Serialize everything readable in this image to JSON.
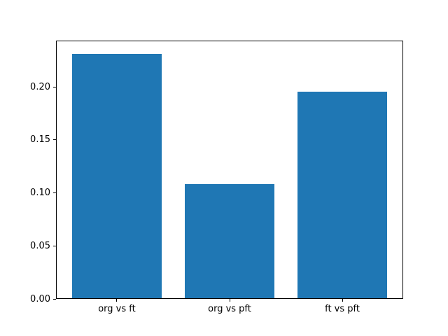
{
  "chart_data": {
    "type": "bar",
    "categories": [
      "org vs ft",
      "org vs pft",
      "ft vs pft"
    ],
    "values": [
      0.232,
      0.108,
      0.196
    ],
    "title": "",
    "xlabel": "",
    "ylabel": "",
    "ylim": [
      0,
      0.2437
    ],
    "yticks": [
      "0.00",
      "0.05",
      "0.10",
      "0.15",
      "0.20"
    ],
    "legend": null,
    "grid": false,
    "bar_color": "#1f77b4",
    "spine_color": "#000000",
    "background_color": "#ffffff",
    "tick_label_color": "#000000"
  }
}
